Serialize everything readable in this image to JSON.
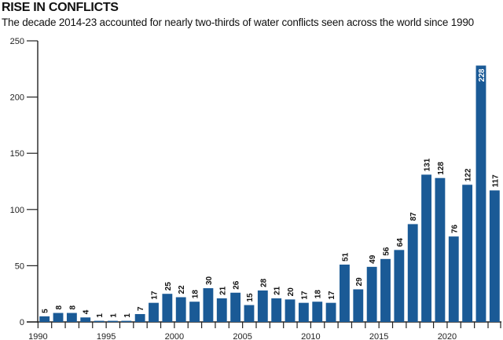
{
  "header": {
    "title": "RISE IN CONFLICTS",
    "subtitle": "The decade 2014-23 accounted for nearly two-thirds of water conflicts seen across the world since 1990"
  },
  "colors": {
    "bar": "#1a5a96",
    "axis": "#222222"
  },
  "chart_data": {
    "type": "bar",
    "title": "RISE IN CONFLICTS",
    "subtitle": "The decade 2014-23 accounted for nearly two-thirds of water conflicts seen across the world since 1990",
    "xlabel": "",
    "ylabel": "",
    "ylim": [
      0,
      250
    ],
    "yticks": [
      0,
      50,
      100,
      150,
      200,
      250
    ],
    "xtick_labels": [
      "1990",
      "1995",
      "2000",
      "2005",
      "2010",
      "2015",
      "2020"
    ],
    "grid": false,
    "legend": "none",
    "categories": [
      "1990",
      "1991",
      "1992",
      "1993",
      "1994",
      "1995",
      "1996",
      "1997",
      "1998",
      "1999",
      "2000",
      "2001",
      "2002",
      "2003",
      "2004",
      "2005",
      "2006",
      "2007",
      "2008",
      "2009",
      "2010",
      "2011",
      "2012",
      "2013",
      "2014",
      "2015",
      "2016",
      "2017",
      "2018",
      "2019",
      "2020",
      "2021",
      "2022",
      "2023"
    ],
    "values": [
      5,
      8,
      8,
      4,
      1,
      1,
      1,
      7,
      17,
      25,
      22,
      18,
      30,
      21,
      26,
      15,
      28,
      21,
      20,
      17,
      18,
      17,
      51,
      29,
      49,
      56,
      64,
      87,
      131,
      128,
      76,
      122,
      228,
      117
    ]
  }
}
